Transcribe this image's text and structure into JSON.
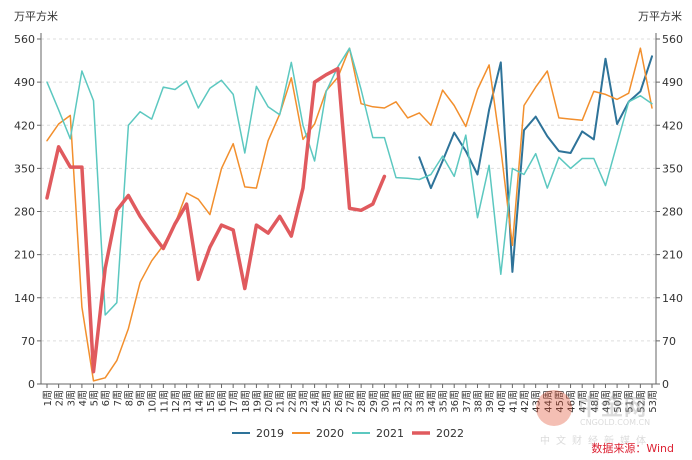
{
  "chart_data": {
    "type": "line",
    "unit_left": "万平方米",
    "unit_right": "万平方米",
    "source": "数据来源：Wind",
    "watermark": {
      "big": "中金网",
      "url": "CNGOLD.COM.CN",
      "cn": "中文财经新媒体"
    },
    "ylim": [
      0,
      560
    ],
    "yticks": [
      0,
      70,
      140,
      210,
      280,
      350,
      420,
      490,
      560
    ],
    "legend_position": "bottom",
    "grid": true,
    "categories": [
      "1周",
      "2周",
      "3周",
      "4周",
      "5周",
      "6周",
      "7周",
      "8周",
      "9周",
      "10周",
      "11周",
      "12周",
      "13周",
      "14周",
      "15周",
      "16周",
      "17周",
      "18周",
      "19周",
      "20周",
      "21周",
      "22周",
      "23周",
      "24周",
      "25周",
      "26周",
      "27周",
      "28周",
      "29周",
      "30周",
      "31周",
      "32周",
      "33周",
      "34周",
      "35周",
      "36周",
      "37周",
      "38周",
      "39周",
      "40周",
      "41周",
      "42周",
      "43周",
      "44周",
      "45周",
      "46周",
      "47周",
      "48周",
      "49周",
      "50周",
      "51周",
      "52周",
      "53周"
    ],
    "series": [
      {
        "name": "2019",
        "color": "#2e7399",
        "width": 2,
        "values": [
          null,
          null,
          null,
          null,
          null,
          null,
          null,
          null,
          null,
          null,
          null,
          null,
          null,
          null,
          null,
          null,
          null,
          null,
          null,
          null,
          null,
          null,
          null,
          null,
          null,
          null,
          null,
          null,
          null,
          null,
          null,
          null,
          368,
          318,
          362,
          408,
          378,
          340,
          445,
          522,
          182,
          412,
          434,
          402,
          378,
          375,
          410,
          397,
          528,
          422,
          458,
          475,
          532
        ]
      },
      {
        "name": "2020",
        "color": "#f28f2d",
        "width": 1.5,
        "values": [
          395,
          422,
          436,
          125,
          5,
          10,
          38,
          90,
          165,
          200,
          225,
          260,
          310,
          300,
          275,
          350,
          390,
          320,
          318,
          395,
          438,
          497,
          397,
          422,
          476,
          498,
          545,
          455,
          450,
          448,
          458,
          432,
          440,
          420,
          477,
          452,
          418,
          478,
          518,
          382,
          225,
          452,
          482,
          508,
          432,
          430,
          428,
          475,
          470,
          462,
          472,
          545,
          448
        ]
      },
      {
        "name": "2021",
        "color": "#5cc8c0",
        "width": 1.5,
        "values": [
          490,
          445,
          398,
          508,
          460,
          112,
          132,
          420,
          442,
          430,
          482,
          478,
          492,
          448,
          480,
          493,
          470,
          375,
          483,
          450,
          437,
          522,
          420,
          362,
          475,
          515,
          545,
          478,
          400,
          400,
          335,
          334,
          332,
          340,
          370,
          337,
          404,
          270,
          355,
          178,
          350,
          340,
          374,
          318,
          368,
          350,
          366,
          366,
          322,
          390,
          458,
          468,
          455
        ]
      },
      {
        "name": "2022",
        "color": "#e05a5e",
        "width": 3.5,
        "values": [
          302,
          385,
          352,
          352,
          20,
          188,
          282,
          306,
          272,
          245,
          220,
          260,
          292,
          170,
          222,
          258,
          250,
          155,
          258,
          245,
          272,
          240,
          318,
          490,
          502,
          512,
          285,
          282,
          292,
          337,
          null,
          null,
          null,
          null,
          null,
          null,
          null,
          null,
          null,
          null,
          null,
          null,
          null,
          null,
          null,
          null,
          null,
          null,
          null,
          null,
          null,
          null,
          null
        ]
      }
    ]
  }
}
